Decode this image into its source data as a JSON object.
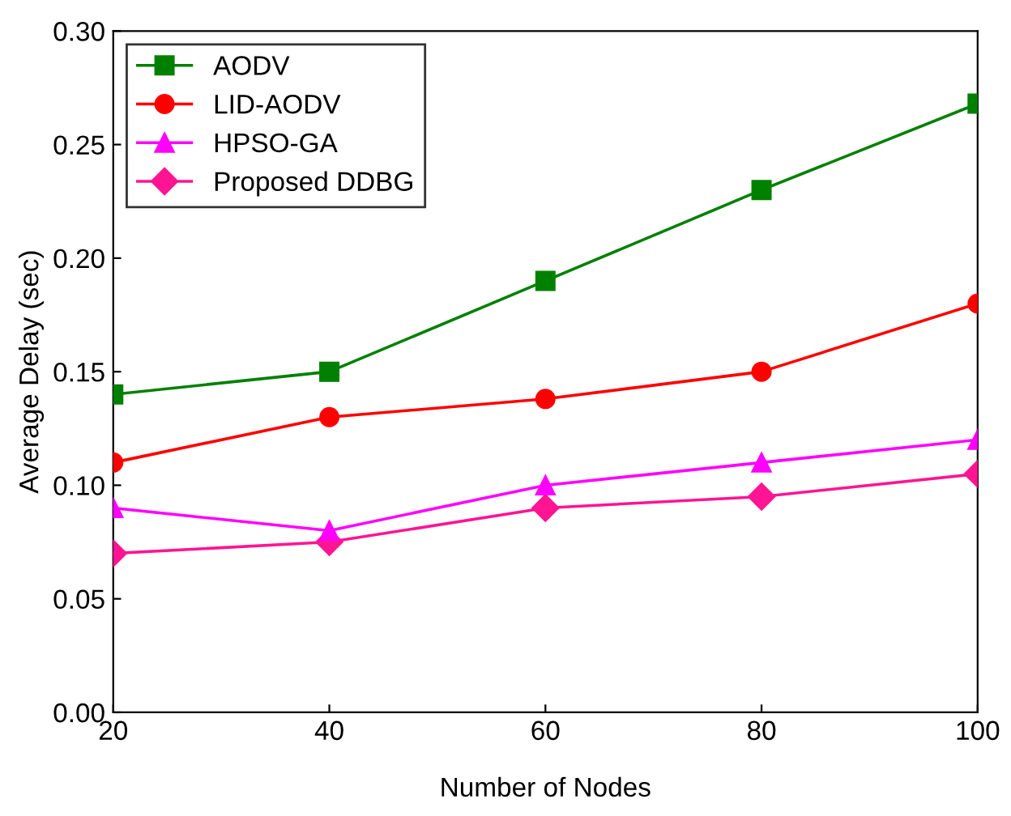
{
  "chart_data": {
    "type": "line",
    "xlabel": "Number of Nodes",
    "ylabel": "Average Delay (sec)",
    "x": [
      20,
      40,
      60,
      80,
      100
    ],
    "xlim": [
      20,
      100
    ],
    "xticks": [
      20,
      40,
      60,
      80,
      100
    ],
    "ylim": [
      0,
      0.3
    ],
    "yticks": [
      {
        "value": 0,
        "label": "0.00"
      },
      {
        "value": 0.05,
        "label": "0.05"
      },
      {
        "value": 0.1,
        "label": "0.10"
      },
      {
        "value": 0.15,
        "label": "0.15"
      },
      {
        "value": 0.2,
        "label": "0.20"
      },
      {
        "value": 0.25,
        "label": "0.25"
      },
      {
        "value": 0.3,
        "label": "0.30"
      }
    ],
    "grid": false,
    "legend": "top left",
    "line_style": "solid",
    "series": [
      {
        "name": "AODV",
        "color": "#008000",
        "marker": "square",
        "values": [
          0.14,
          0.15,
          0.19,
          0.23,
          0.268
        ]
      },
      {
        "name": "LID-AODV",
        "color": "#ff0000",
        "marker": "circle",
        "values": [
          0.11,
          0.13,
          0.138,
          0.15,
          0.18
        ]
      },
      {
        "name": "HPSO-GA",
        "color": "#ff00ff",
        "marker": "triangle",
        "values": [
          0.09,
          0.08,
          0.1,
          0.11,
          0.12
        ]
      },
      {
        "name": "Proposed DDBG",
        "color": "#ff1493",
        "marker": "diamond",
        "values": [
          0.07,
          0.075,
          0.09,
          0.095,
          0.105
        ]
      }
    ]
  }
}
